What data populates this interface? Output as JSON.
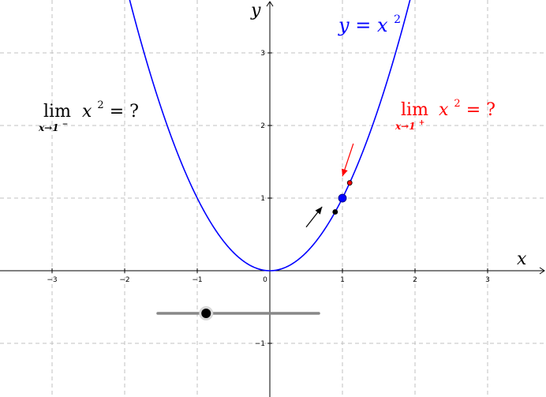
{
  "chart_data": {
    "type": "line",
    "title": "",
    "xlabel": "x",
    "ylabel": "y",
    "xlim": [
      -3.7,
      3.8
    ],
    "ylim": [
      -1.7,
      3.7
    ],
    "x_ticks": [
      "−3",
      "−2",
      "−1",
      "0",
      "1",
      "2",
      "3"
    ],
    "y_ticks": [
      "−1",
      "1",
      "2",
      "3"
    ],
    "grid": true,
    "series": [
      {
        "name": "y = x²",
        "function": "x^2",
        "color": "#0000ff"
      }
    ],
    "points": [
      {
        "x": 1.0,
        "y": 1.0,
        "color": "#0000ff"
      },
      {
        "x": 1.1,
        "y": 1.21,
        "color": "#ff0000"
      },
      {
        "x": 0.9,
        "y": 0.81,
        "color": "#000000"
      }
    ],
    "arrows": [
      {
        "from": [
          1.15,
          1.75
        ],
        "to": [
          1.0,
          1.3
        ],
        "color": "#ff0000"
      },
      {
        "from": [
          0.5,
          0.6
        ],
        "to": [
          0.72,
          0.88
        ],
        "color": "#000000"
      }
    ],
    "slider_value": -0.9
  },
  "annotations": {
    "curve_label": {
      "lhs": "y",
      "eq": " = ",
      "base": "x",
      "exp": "2",
      "color": "#0000ff"
    },
    "left_limit": {
      "lim": "lim",
      "sub_var": "x→1",
      "sub_sign": "−",
      "body_base": "x",
      "body_exp": "2",
      "body_rest": " = ?",
      "color": "#000000"
    },
    "right_limit": {
      "lim": "lim",
      "sub_var": "x→1",
      "sub_sign": "+",
      "body_base": "x",
      "body_exp": "2",
      "body_rest": " = ?",
      "color": "#ff0000"
    }
  },
  "slider": {
    "track_color": "#888888",
    "knob_color": "#000000"
  }
}
